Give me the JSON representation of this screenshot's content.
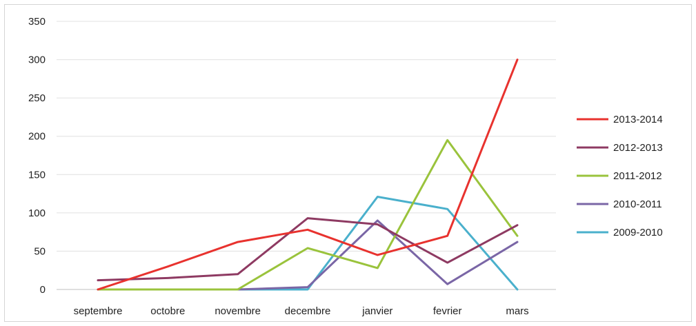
{
  "chart_data": {
    "type": "line",
    "title": "",
    "xlabel": "",
    "ylabel": "",
    "categories": [
      "septembre",
      "octobre",
      "novembre",
      "decembre",
      "janvier",
      "fevrier",
      "mars"
    ],
    "ylim": [
      0,
      350
    ],
    "yticks": [
      0,
      50,
      100,
      150,
      200,
      250,
      300,
      350
    ],
    "grid": "horizontal",
    "legend_position": "right",
    "series": [
      {
        "name": "2013-2014",
        "color": "#e8322e",
        "values": [
          0,
          30,
          62,
          78,
          45,
          70,
          300
        ]
      },
      {
        "name": "2012-2013",
        "color": "#8e3a62",
        "values": [
          12,
          15,
          20,
          93,
          85,
          35,
          84
        ]
      },
      {
        "name": "2011-2012",
        "color": "#9ac33c",
        "values": [
          0,
          0,
          0,
          54,
          28,
          195,
          70
        ]
      },
      {
        "name": "2010-2011",
        "color": "#7a66a6",
        "values": [
          0,
          0,
          0,
          3,
          90,
          7,
          62
        ]
      },
      {
        "name": "2009-2010",
        "color": "#4ab0cc",
        "values": [
          0,
          0,
          0,
          0,
          121,
          105,
          0
        ]
      }
    ]
  }
}
